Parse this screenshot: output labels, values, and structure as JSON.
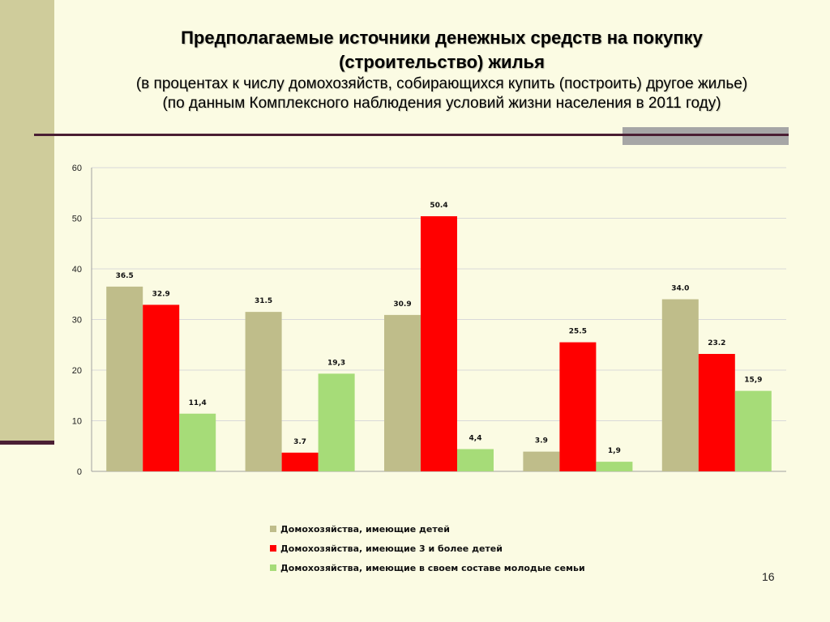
{
  "slide": {
    "title_line1": "Предполагаемые источники денежных средств на покупку",
    "title_line2": "(строительство) жилья",
    "subtitle_line1": "(в процентах к числу домохозяйств, собирающихся купить (построить) другое жилье)",
    "subtitle_line2": "(по данным Комплексного наблюдения условий жизни населения в 2011 году)",
    "page_number": "16"
  },
  "colors": {
    "series1": "#BFBD8A",
    "series2": "#FF0000",
    "series3": "#A6DC78",
    "grid": "#D9D9D9"
  },
  "chart_data": {
    "type": "bar",
    "categories": [
      "",
      "",
      "",
      "",
      ""
    ],
    "ylim": [
      0,
      60
    ],
    "yticks": [
      0,
      10,
      20,
      30,
      40,
      50,
      60
    ],
    "grid": true,
    "legend_position": "bottom",
    "series": [
      {
        "name": "Домохозяйства, имеющие детей",
        "values": [
          36.5,
          31.5,
          30.9,
          3.9,
          34.0
        ],
        "labels": [
          "36.5",
          "31.5",
          "30.9",
          "3.9",
          "34.0"
        ]
      },
      {
        "name": "Домохозяйства, имеющие 3 и более детей",
        "values": [
          32.9,
          3.7,
          50.4,
          25.5,
          23.2
        ],
        "labels": [
          "32.9",
          "3.7",
          "50.4",
          "25.5",
          "23.2"
        ]
      },
      {
        "name": "Домохозяйства, имеющие в своем составе молодые семьи",
        "values": [
          11.4,
          19.3,
          4.4,
          1.9,
          15.9
        ],
        "labels": [
          "11,4",
          "19,3",
          "4,4",
          "1,9",
          "15,9"
        ]
      }
    ]
  }
}
